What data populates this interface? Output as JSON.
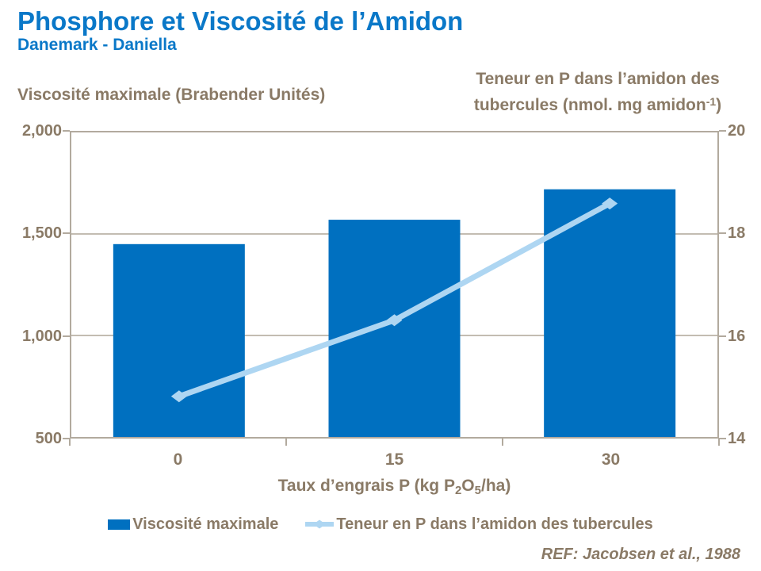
{
  "header": {
    "title": "Phosphore et Viscosité de l’Amidon",
    "subtitle": "Danemark - Daniella"
  },
  "footer": {
    "reference": "REF: Jacobsen et al., 1988"
  },
  "colors": {
    "title_blue": "#0a78c8",
    "bar_blue": "#0070c0",
    "line_blue": "#aed6f2",
    "text_brown": "#8a7a66",
    "axis_frame": "#b2aa9e",
    "gridline": "#c3bcb2"
  },
  "chart_data": {
    "type": "bar",
    "subtype": "bar-and-line-combo",
    "categories": [
      "0",
      "15",
      "30"
    ],
    "series": [
      {
        "name": "Viscosité maximale",
        "type": "bar",
        "axis": "left",
        "color": "#0070c0",
        "values": [
          1450,
          1570,
          1720
        ]
      },
      {
        "name": "Teneur en P dans l’amidon des tubercules",
        "type": "line",
        "axis": "right",
        "color": "#aed6f2",
        "marker": "diamond",
        "values": [
          14.8,
          16.3,
          18.6
        ]
      }
    ],
    "left_axis": {
      "title": "Viscosité maximale (Brabender Unités)",
      "min": 500,
      "max": 2000,
      "tick_values": [
        2000,
        1500,
        1000,
        500
      ],
      "tick_labels": [
        "2,000",
        "1,500",
        "1,000",
        "500"
      ]
    },
    "right_axis": {
      "title_line1": "Teneur en P dans l’amidon des",
      "title_line2_prefix": "tubercules (nmol. mg amidon",
      "title_superscript": "-1",
      "title_line2_suffix": ")",
      "min": 14,
      "max": 20,
      "tick_values": [
        20,
        18,
        16,
        14
      ],
      "tick_labels": [
        "20",
        "18",
        "16",
        "14"
      ]
    },
    "x_axis": {
      "title_prefix": "Taux d’engrais P (kg P",
      "title_sub1": "2",
      "title_mid": "O",
      "title_sub2": "5",
      "title_suffix": "/ha)",
      "tick_labels": [
        "0",
        "15",
        "30"
      ]
    },
    "grid": "horizontal",
    "legend_position": "bottom"
  }
}
